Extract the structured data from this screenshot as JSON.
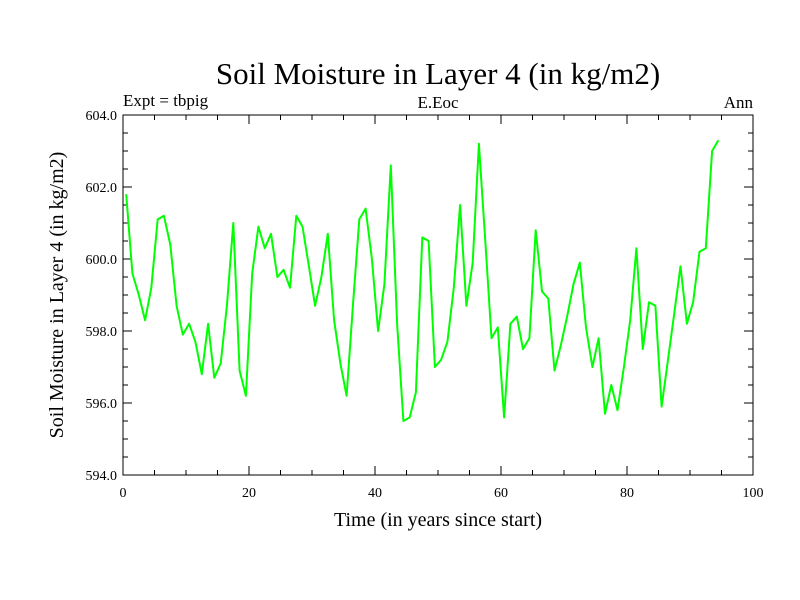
{
  "chart_data": {
    "type": "line",
    "title": "Soil Moisture in Layer 4 (in kg/m2)",
    "subtitle_left": "Expt = tbpig",
    "subtitle_center": "E.Eoc",
    "subtitle_right": "Ann",
    "xlabel": "Time (in years since start)",
    "ylabel": "Soil Moisture in Layer 4 (in kg/m2)",
    "xlim": [
      0,
      100
    ],
    "ylim": [
      594,
      604
    ],
    "xticks": [
      0,
      20,
      40,
      60,
      80,
      100
    ],
    "xtick_labels": [
      "0",
      "20",
      "40",
      "60",
      "80",
      "100"
    ],
    "yticks": [
      594,
      596,
      598,
      600,
      602,
      604
    ],
    "ytick_labels": [
      "594.0",
      "596.0",
      "598.0",
      "600.0",
      "602.0",
      "604.0"
    ],
    "line_color": "#00ff00",
    "series": [
      {
        "name": "Soil Moisture",
        "x": [
          0.5,
          1.5,
          2.5,
          3.5,
          4.5,
          5.5,
          6.5,
          7.5,
          8.5,
          9.5,
          10.5,
          11.5,
          12.5,
          13.5,
          14.5,
          15.5,
          16.5,
          17.5,
          18.5,
          19.5,
          20.5,
          21.5,
          22.5,
          23.5,
          24.5,
          25.5,
          26.5,
          27.5,
          28.5,
          29.5,
          30.5,
          31.5,
          32.5,
          33.5,
          34.5,
          35.5,
          36.5,
          37.5,
          38.5,
          39.5,
          40.5,
          41.5,
          42.5,
          43.5,
          44.5,
          45.5,
          46.5,
          47.5,
          48.5,
          49.5,
          50.5,
          51.5,
          52.5,
          53.5,
          54.5,
          55.5,
          56.5,
          57.5,
          58.5,
          59.5,
          60.5,
          61.5,
          62.5,
          63.5,
          64.5,
          65.5,
          66.5,
          67.5,
          68.5,
          69.5,
          70.5,
          71.5,
          72.5,
          73.5,
          74.5,
          75.5,
          76.5,
          77.5,
          78.5,
          79.5,
          80.5,
          81.5,
          82.5,
          83.5,
          84.5,
          85.5,
          86.5,
          87.5,
          88.5,
          89.5,
          90.5,
          91.5,
          92.5,
          93.5,
          94.5
        ],
        "values": [
          601.8,
          599.6,
          599.0,
          598.3,
          599.2,
          601.1,
          601.2,
          600.4,
          598.7,
          597.9,
          598.2,
          597.7,
          596.8,
          598.2,
          596.7,
          597.1,
          598.7,
          601.0,
          596.9,
          596.2,
          599.6,
          600.9,
          600.3,
          600.7,
          599.5,
          599.7,
          599.2,
          601.2,
          600.9,
          599.8,
          598.7,
          599.5,
          600.7,
          598.3,
          597.1,
          596.2,
          598.7,
          601.1,
          601.4,
          600.0,
          598.0,
          599.3,
          602.6,
          598.2,
          595.5,
          595.6,
          596.3,
          600.6,
          600.5,
          597.0,
          597.2,
          597.7,
          599.2,
          601.5,
          598.7,
          599.9,
          603.2,
          600.5,
          597.8,
          598.1,
          595.6,
          598.2,
          598.4,
          597.5,
          597.8,
          600.8,
          599.1,
          598.9,
          596.9,
          597.6,
          598.4,
          599.3,
          599.9,
          598.1,
          597.0,
          597.8,
          595.7,
          596.5,
          595.8,
          597.0,
          598.3,
          600.3,
          597.5,
          598.8,
          598.7,
          595.9,
          597.2,
          598.5,
          599.8,
          598.2,
          598.8,
          600.2,
          600.3,
          603.0,
          603.3
        ]
      }
    ]
  }
}
